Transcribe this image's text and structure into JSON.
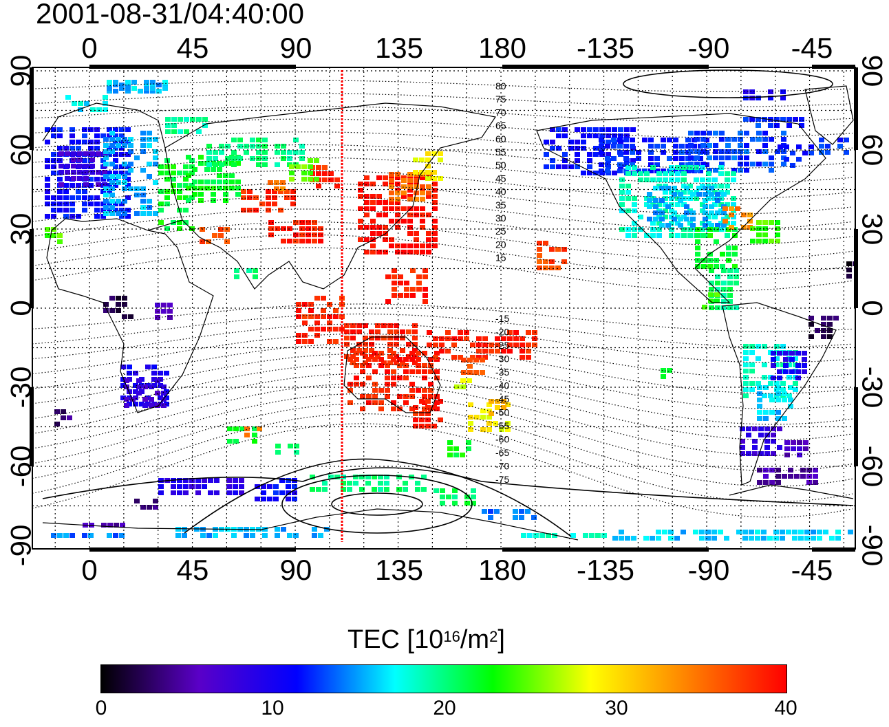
{
  "timestamp": "2001-08-31/04:40:00",
  "map": {
    "x_ticks_top": [
      "0",
      "45",
      "90",
      "135",
      "180",
      "-135",
      "-90",
      "-45"
    ],
    "x_ticks_bottom": [
      "0",
      "45",
      "90",
      "135",
      "180",
      "-135",
      "-90",
      "-45"
    ],
    "y_ticks_left": [
      "90",
      "60",
      "30",
      "0",
      "-30",
      "-60",
      "-90"
    ],
    "y_ticks_right": [
      "90",
      "60",
      "30",
      "0",
      "-30",
      "-60",
      "-90"
    ],
    "contour_labels_north": [
      "80",
      "75",
      "70",
      "65",
      "60",
      "55",
      "50",
      "45",
      "40",
      "35",
      "30",
      "25",
      "20",
      "15"
    ],
    "contour_labels_south": [
      "-15",
      "-20",
      "-25",
      "-30",
      "-35",
      "-40",
      "-45",
      "-50",
      "-55",
      "-60",
      "-65",
      "-70",
      "-75"
    ],
    "sun_longitude_line": "110",
    "colors": {
      "frame": "#000000",
      "terminator_line": "#ff0000",
      "grid": "#000000"
    }
  },
  "colorbar": {
    "title_prefix": "TEC  [10",
    "title_exp1": "16",
    "title_mid": "/m",
    "title_exp2": "2",
    "title_suffix": "]",
    "ticks": [
      "0",
      "10",
      "20",
      "30",
      "40"
    ],
    "range": [
      0,
      40
    ],
    "colors": [
      "#000000",
      "#5a00c8",
      "#0000ff",
      "#00ffff",
      "#00ff00",
      "#ffff00",
      "#ff8000",
      "#ff0000"
    ]
  }
}
